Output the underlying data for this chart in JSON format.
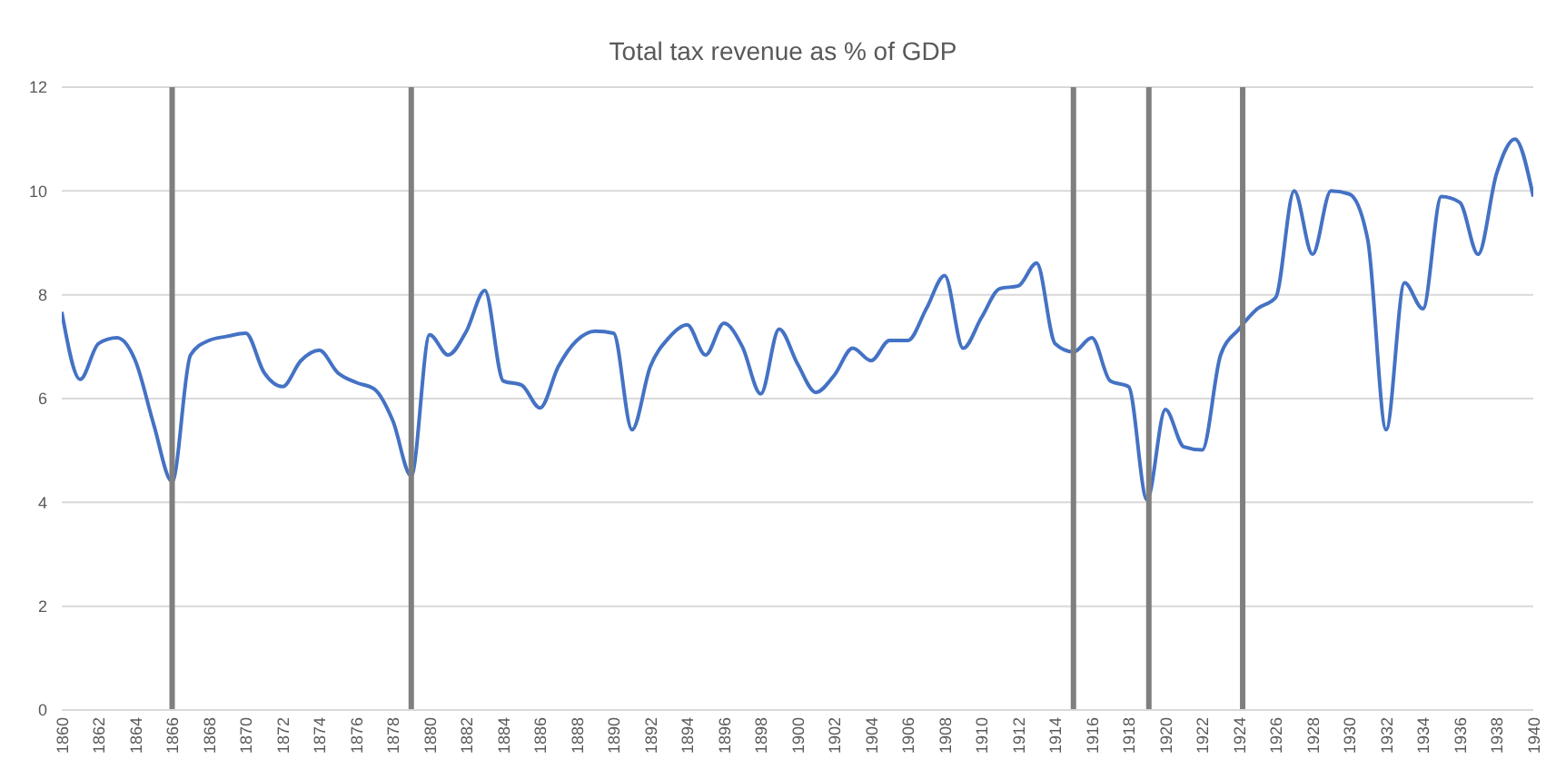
{
  "chart_data": {
    "type": "line",
    "title": "Total tax revenue as % of GDP",
    "x": [
      1860,
      1861,
      1862,
      1863,
      1864,
      1865,
      1866,
      1867,
      1868,
      1869,
      1870,
      1871,
      1872,
      1873,
      1874,
      1875,
      1876,
      1877,
      1878,
      1879,
      1880,
      1881,
      1882,
      1883,
      1884,
      1885,
      1886,
      1887,
      1888,
      1889,
      1890,
      1891,
      1892,
      1893,
      1894,
      1895,
      1896,
      1897,
      1898,
      1899,
      1900,
      1901,
      1902,
      1903,
      1904,
      1905,
      1906,
      1907,
      1908,
      1909,
      1910,
      1911,
      1912,
      1913,
      1914,
      1915,
      1916,
      1917,
      1918,
      1919,
      1920,
      1921,
      1922,
      1923,
      1924,
      1925,
      1926,
      1927,
      1928,
      1929,
      1930,
      1931,
      1932,
      1933,
      1934,
      1935,
      1936,
      1937,
      1938,
      1939,
      1940
    ],
    "series": [
      {
        "color": "#4472c4",
        "values": [
          7.67,
          6.37,
          7.06,
          7.17,
          6.73,
          5.5,
          4.4,
          6.84,
          7.12,
          7.2,
          7.26,
          6.5,
          6.23,
          6.73,
          6.93,
          6.5,
          6.31,
          6.18,
          5.57,
          4.51,
          7.23,
          6.84,
          7.3,
          8.08,
          6.34,
          6.26,
          5.82,
          6.62,
          7.12,
          7.3,
          7.26,
          5.4,
          6.62,
          7.17,
          7.42,
          6.84,
          7.45,
          7.0,
          6.09,
          7.34,
          6.67,
          6.12,
          6.45,
          6.97,
          6.73,
          7.12,
          7.12,
          7.73,
          8.37,
          6.97,
          7.56,
          8.12,
          8.17,
          8.61,
          7.06,
          6.9,
          7.17,
          6.34,
          6.23,
          4.05,
          5.79,
          5.07,
          5.01,
          6.84,
          7.34,
          7.73,
          7.95,
          10.0,
          8.78,
          10.0,
          9.94,
          9.06,
          5.4,
          8.23,
          7.73,
          9.89,
          9.78,
          8.78,
          10.33,
          11.0,
          9.89
        ]
      }
    ],
    "xlim": [
      1860,
      1940
    ],
    "xticks": [
      1860,
      1862,
      1864,
      1866,
      1868,
      1870,
      1872,
      1874,
      1876,
      1878,
      1880,
      1882,
      1884,
      1886,
      1888,
      1890,
      1892,
      1894,
      1896,
      1898,
      1900,
      1902,
      1904,
      1906,
      1908,
      1910,
      1912,
      1914,
      1916,
      1918,
      1920,
      1922,
      1924,
      1926,
      1928,
      1930,
      1932,
      1934,
      1936,
      1938,
      1940
    ],
    "ylim": [
      0,
      12
    ],
    "yticks": [
      0,
      2,
      4,
      6,
      8,
      10,
      12
    ],
    "grid": "y",
    "marker": "none",
    "line_style": "solid",
    "ref_lines": [
      {
        "axis": "x",
        "value": 1866,
        "color": "#7f7f7f"
      },
      {
        "axis": "x",
        "value": 1879,
        "color": "#7f7f7f"
      },
      {
        "axis": "x",
        "value": 1915,
        "color": "#7f7f7f"
      },
      {
        "axis": "x",
        "value": 1919.1,
        "color": "#7f7f7f"
      },
      {
        "axis": "x",
        "value": 1924.2,
        "color": "#7f7f7f"
      }
    ]
  }
}
